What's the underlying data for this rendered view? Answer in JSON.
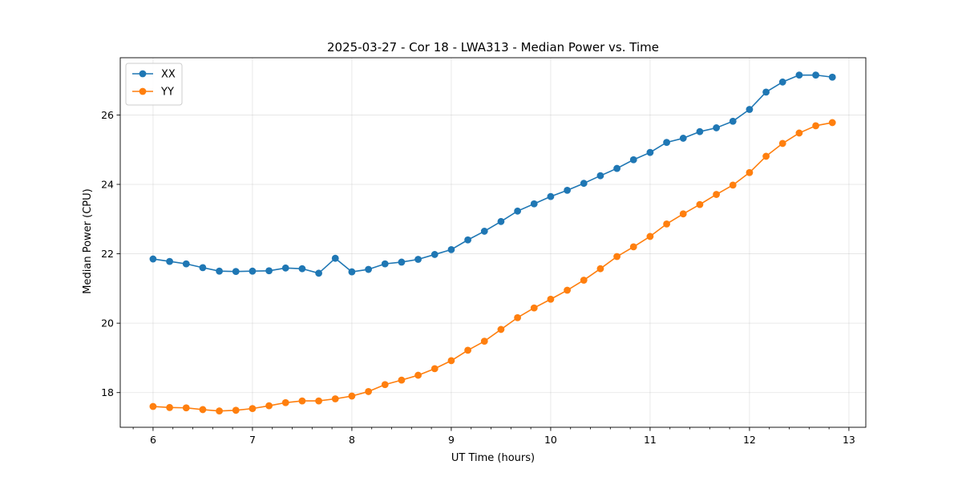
{
  "chart_data": {
    "type": "line",
    "title": "2025-03-27 - Cor 18 - LWA313 - Median Power vs. Time",
    "xlabel": "UT Time (hours)",
    "ylabel": "Median Power (CPU)",
    "xlim": [
      5.67,
      13.17
    ],
    "ylim": [
      17.0,
      27.65
    ],
    "xticks": [
      6,
      7,
      8,
      9,
      10,
      11,
      12,
      13
    ],
    "xtick_labels": [
      "6",
      "7",
      "8",
      "9",
      "10",
      "11",
      "12",
      "13"
    ],
    "xminor_step": 0.2,
    "yticks": [
      18,
      20,
      22,
      24,
      26
    ],
    "ytick_labels": [
      "18",
      "20",
      "22",
      "24",
      "26"
    ],
    "grid": true,
    "legend_position": "top-left",
    "x": [
      6.0,
      6.1667,
      6.3333,
      6.5,
      6.6667,
      6.8333,
      7.0,
      7.1667,
      7.3333,
      7.5,
      7.6667,
      7.8333,
      8.0,
      8.1667,
      8.3333,
      8.5,
      8.6667,
      8.8333,
      9.0,
      9.1667,
      9.3333,
      9.5,
      9.6667,
      9.8333,
      10.0,
      10.1667,
      10.3333,
      10.5,
      10.6667,
      10.8333,
      11.0,
      11.1667,
      11.3333,
      11.5,
      11.6667,
      11.8333,
      12.0,
      12.1667,
      12.3333,
      12.5,
      12.6667,
      12.8333
    ],
    "series": [
      {
        "name": "XX",
        "color": "#1f77b4",
        "values": [
          21.85,
          21.78,
          21.71,
          21.6,
          21.5,
          21.49,
          21.5,
          21.51,
          21.59,
          21.57,
          21.44,
          21.87,
          21.48,
          21.55,
          21.71,
          21.76,
          21.84,
          21.98,
          22.12,
          22.4,
          22.65,
          22.93,
          23.23,
          23.44,
          23.65,
          23.83,
          24.03,
          24.25,
          24.46,
          24.71,
          24.92,
          25.21,
          25.33,
          25.52,
          25.63,
          25.82,
          26.16,
          26.66,
          26.95,
          27.15,
          27.15,
          27.09
        ]
      },
      {
        "name": "YY",
        "color": "#ff7f0e",
        "values": [
          17.6,
          17.57,
          17.56,
          17.51,
          17.47,
          17.49,
          17.54,
          17.62,
          17.71,
          17.76,
          17.76,
          17.82,
          17.9,
          18.03,
          18.23,
          18.36,
          18.5,
          18.69,
          18.92,
          19.22,
          19.48,
          19.82,
          20.16,
          20.44,
          20.69,
          20.95,
          21.24,
          21.57,
          21.92,
          22.2,
          22.5,
          22.86,
          23.15,
          23.42,
          23.71,
          23.98,
          24.34,
          24.81,
          25.18,
          25.48,
          25.69,
          25.78
        ]
      }
    ]
  }
}
